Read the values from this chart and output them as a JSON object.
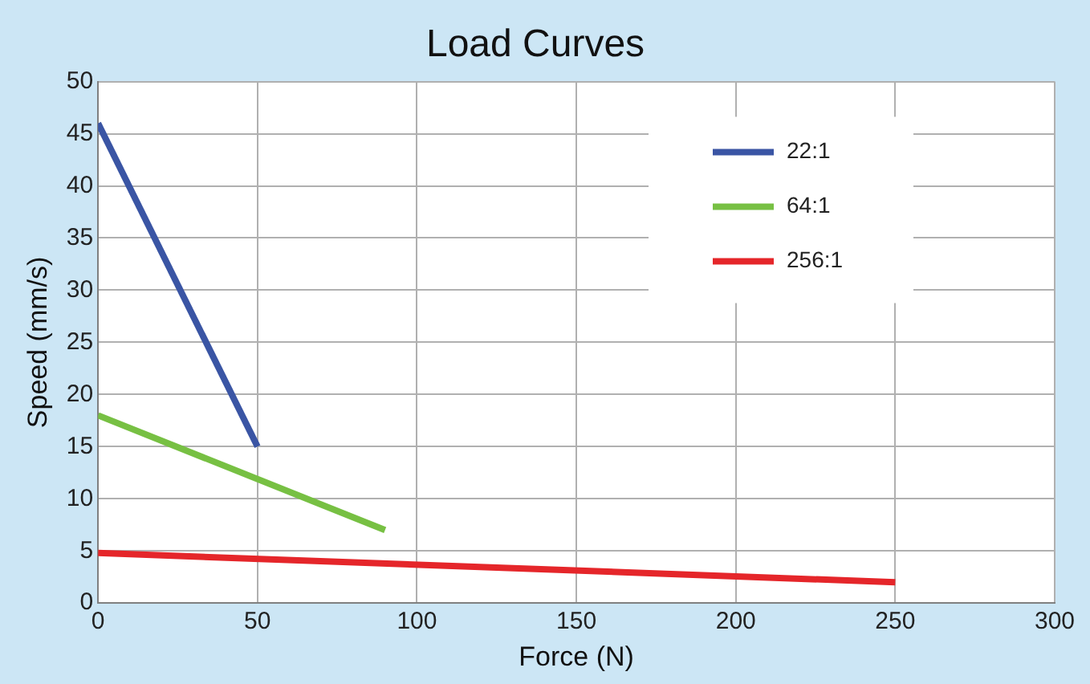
{
  "chart_data": {
    "type": "line",
    "title": "Load Curves",
    "xlabel": "Force (N)",
    "ylabel": "Speed (mm/s)",
    "xlim": [
      0,
      300
    ],
    "xticks": [
      0,
      50,
      100,
      150,
      200,
      250,
      300
    ],
    "ylim": [
      0,
      50
    ],
    "yticks": [
      0,
      5,
      10,
      15,
      20,
      25,
      30,
      35,
      40,
      45,
      50
    ],
    "grid": true,
    "legend": "top right",
    "marker": "none",
    "line_style": "solid",
    "series": [
      {
        "name": "22:1",
        "color": "#3a55a4",
        "x": [
          0,
          50
        ],
        "values": [
          46,
          15
        ]
      },
      {
        "name": "64:1",
        "color": "#77c043",
        "x": [
          0,
          90
        ],
        "values": [
          18,
          7
        ]
      },
      {
        "name": "256:1",
        "color": "#e5262a",
        "x": [
          0,
          250
        ],
        "values": [
          4.8,
          2
        ]
      }
    ]
  }
}
